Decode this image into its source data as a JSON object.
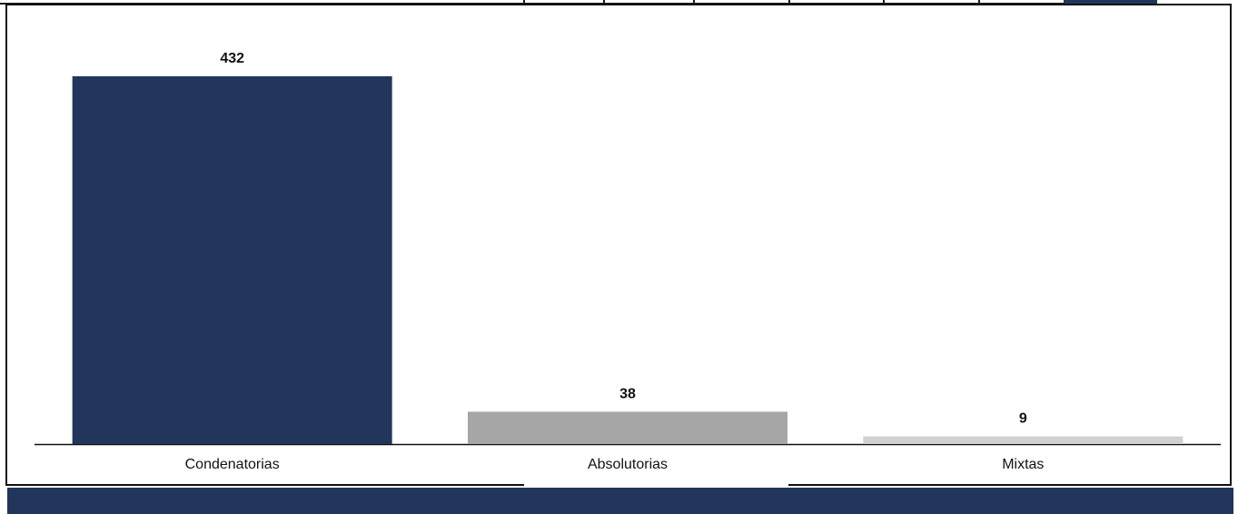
{
  "colors": {
    "navy": "#22355a",
    "gray": "#a6a6a6",
    "light_gray": "#d0d0d0",
    "frame": "#111111"
  },
  "chart_data": {
    "type": "bar",
    "categories": [
      "Condenatorias",
      "Absolutorias",
      "Mixtas"
    ],
    "values": [
      432,
      38,
      9
    ],
    "data_labels": [
      "432",
      "38",
      "9"
    ],
    "bar_colors": [
      "#22355a",
      "#a6a6a6",
      "#d0d0d0"
    ],
    "title": "",
    "xlabel": "",
    "ylabel": "",
    "ylim": [
      0,
      432
    ],
    "grid": false,
    "legend": "none"
  }
}
